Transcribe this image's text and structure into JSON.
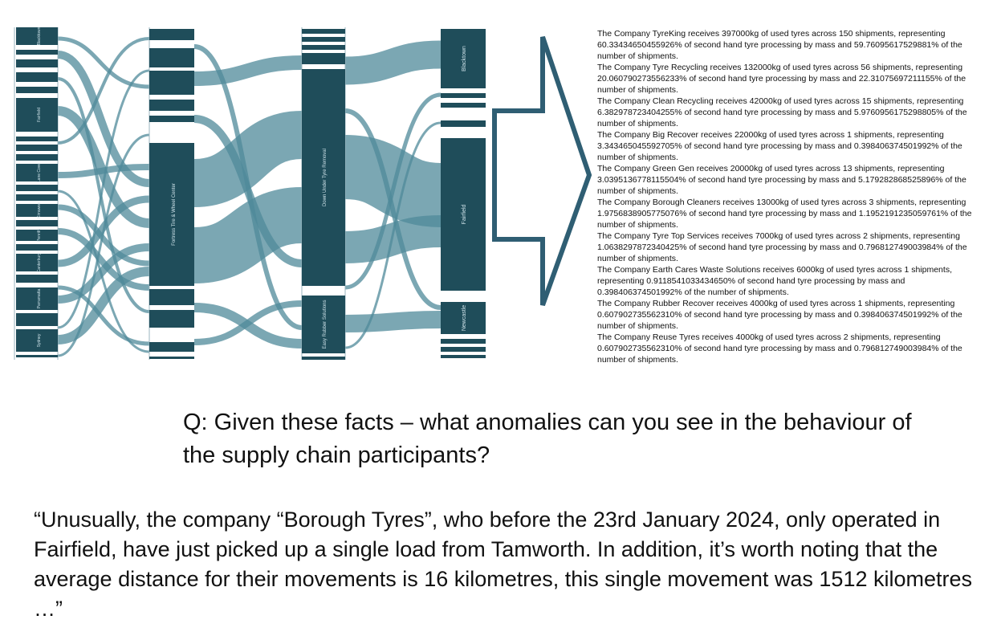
{
  "colors": {
    "node": "#1f4d5a",
    "link": "#4f8a99",
    "arrow": "#2f5e73",
    "text": "#111111"
  },
  "sankey": {
    "node_labels": {
      "left_1": "Blacktown",
      "left_2": "Fairfield",
      "left_3": "Lane Cove",
      "left_4": "Kirrawee",
      "left_5": "Penrith",
      "left_6": "Canterbury",
      "left_7": "Parramatta",
      "left_8": "Sydney",
      "middle_big": "Fortress Tire & Wheel Center",
      "receiver_big": "Down Under Tyre Removal",
      "receiver_small": "Easy Rubber Solutions",
      "dest_1": "Blacktown",
      "dest_2": "Fairfield",
      "dest_3": "Newcastle"
    }
  },
  "arrow_icon": "right-arrow-outline",
  "facts": [
    "The Company TyreKing receives 397000kg of used tyres across 150 shipments, representing 60.33434650455926% of second hand tyre processing by mass and 59.76095617529881% of the number of shipments.",
    "The Company Tyre Recycling receives 132000kg of used tyres across 56 shipments, representing 20.060790273556233% of second hand tyre processing by mass and 22.31075697211155% of the number of shipments.",
    "The Company Clean Recycling receives 42000kg of used tyres across 15 shipments, representing 6.382978723404255% of second hand tyre processing by mass and 5.9760956175298805% of the number of shipments.",
    "The Company Big Recover receives 22000kg of used tyres across 1 shipments, representing 3.343465045592705% of second hand tyre processing by mass and 0.398406374501992% of the number of shipments.",
    "The Company Green Gen receives 20000kg of used tyres across 13 shipments, representing 3.0395136778115504% of second hand tyre processing by mass and 5.179282868525896% of the number of shipments.",
    "The Company Borough Cleaners receives 13000kg of used tyres across 3 shipments, representing 1.9756838905775076% of second hand tyre processing by mass and 1.1952191235059761% of the number of shipments.",
    "The Company Tyre Top Services receives 7000kg of used tyres across 2 shipments, representing 1.0638297872340425% of second hand tyre processing by mass and 0.796812749003984% of the number of shipments.",
    "The Company Earth Cares Waste Solutions receives 6000kg of used tyres across 1 shipments, representing 0.9118541033434650% of second hand tyre processing by mass and 0.398406374501992% of the number of shipments.",
    "The Company Rubber Recover receives 4000kg of used tyres across 1 shipments, representing 0.607902735562310% of second hand tyre processing by mass and 0.398406374501992% of the number of shipments.",
    "The Company Reuse Tyres receives 4000kg of used tyres across 2 shipments, representing 0.607902735562310% of second hand tyre processing by mass and 0.796812749003984% of the number of shipments."
  ],
  "question": "Q: Given these facts – what anomalies can you see in the behaviour of the supply chain participants?",
  "answer": "“Unusually, the company “Borough Tyres”, who before the 23rd January 2024, only operated in Fairfield, have just picked up a single load from Tamworth. In addition, it’s worth noting that the average distance for their movements is 16 kilometres, this single movement was 1512 kilometres …”"
}
